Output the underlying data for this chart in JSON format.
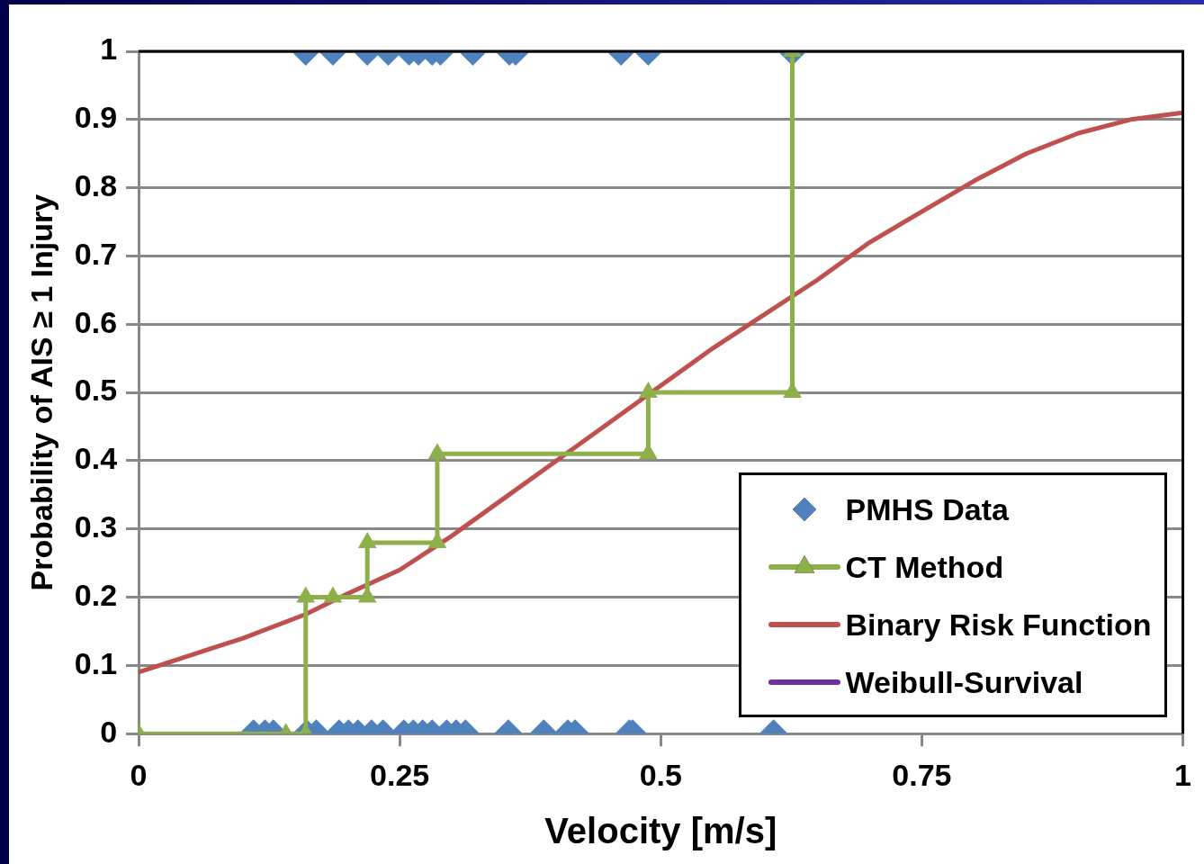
{
  "chart_data": {
    "type": "scatter",
    "xlabel": "Velocity [m/s]",
    "ylabel": "Probability of AIS ≥ 1 Injury",
    "xlim": [
      0,
      1
    ],
    "xticks": [
      0,
      0.25,
      0.5,
      0.75,
      1
    ],
    "ylim": [
      0,
      1
    ],
    "yticks": [
      0,
      0.1,
      0.2,
      0.3,
      0.4,
      0.5,
      0.6,
      0.7,
      0.8,
      0.9,
      1
    ],
    "grid": "y",
    "legend": "bottom right",
    "series": [
      {
        "name": "PMHS Data",
        "type": "scatter",
        "marker": "diamond",
        "color": "#4f81bd",
        "x": [
          0.16,
          0.186,
          0.219,
          0.239,
          0.259,
          0.268,
          0.281,
          0.289,
          0.32,
          0.355,
          0.361,
          0.462,
          0.488,
          0.626,
          0.11,
          0.121,
          0.129,
          0.161,
          0.17,
          0.192,
          0.201,
          0.21,
          0.223,
          0.234,
          0.254,
          0.263,
          0.272,
          0.281,
          0.295,
          0.304,
          0.313,
          0.354,
          0.388,
          0.411,
          0.418,
          0.47,
          0.473,
          0.608
        ],
        "values": [
          1,
          1,
          1,
          1,
          1,
          1,
          1,
          1,
          1,
          1,
          1,
          1,
          1,
          1,
          0,
          0,
          0,
          0,
          0,
          0,
          0,
          0,
          0,
          0,
          0,
          0,
          0,
          0,
          0,
          0,
          0,
          0,
          0,
          0,
          0,
          0,
          0,
          0
        ]
      },
      {
        "name": "CT Method",
        "type": "line",
        "marker": "triangle",
        "line_style": "solid",
        "color": "#8db04a",
        "x": [
          0,
          0.141,
          0.16,
          0.16,
          0.186,
          0.219,
          0.219,
          0.286,
          0.286,
          0.488,
          0.488,
          0.626,
          0.626
        ],
        "values": [
          0,
          0,
          0,
          0.2,
          0.2,
          0.2,
          0.28,
          0.28,
          0.41,
          0.41,
          0.5,
          0.5,
          1
        ]
      },
      {
        "name": "Binary Risk Function",
        "type": "line",
        "marker": "none",
        "line_style": "solid",
        "color": "#c0504d",
        "x": [
          0,
          0.1,
          0.16,
          0.2,
          0.25,
          0.3,
          0.35,
          0.4,
          0.45,
          0.5,
          0.55,
          0.6,
          0.65,
          0.7,
          0.75,
          0.8,
          0.85,
          0.9,
          0.95,
          1
        ],
        "values": [
          0.09,
          0.14,
          0.175,
          0.205,
          0.24,
          0.29,
          0.345,
          0.4,
          0.455,
          0.51,
          0.565,
          0.615,
          0.665,
          0.72,
          0.765,
          0.81,
          0.85,
          0.88,
          0.9,
          0.91
        ]
      },
      {
        "name": "Weibull-Survival",
        "type": "line",
        "marker": "none",
        "line_style": "solid",
        "color": "#7030a0"
      }
    ]
  }
}
